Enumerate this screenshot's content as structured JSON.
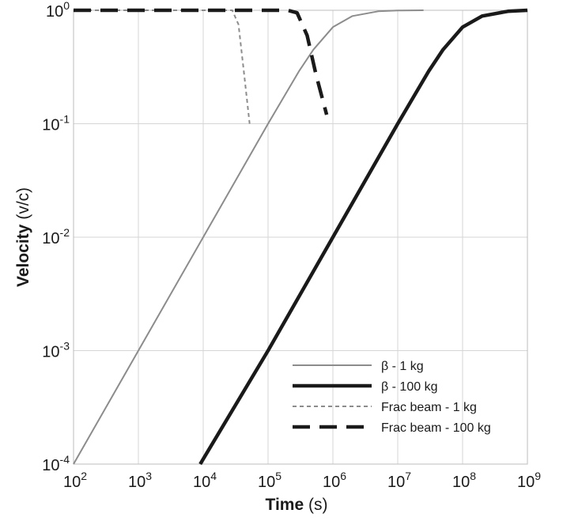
{
  "chart_data": {
    "type": "line",
    "xlabel_bold": "Time",
    "xlabel_unit": "(s)",
    "ylabel_bold": "Velocity",
    "ylabel_unit": "(v/c)",
    "x_scale": "log",
    "y_scale": "log",
    "xlim": [
      100,
      1000000000
    ],
    "ylim": [
      0.0001,
      1
    ],
    "grid": true,
    "legend_position": "bottom-right",
    "x_ticks": [
      {
        "base": "10",
        "exp": "2",
        "value": 100
      },
      {
        "base": "10",
        "exp": "3",
        "value": 1000
      },
      {
        "base": "10",
        "exp": "4",
        "value": 10000
      },
      {
        "base": "10",
        "exp": "5",
        "value": 100000
      },
      {
        "base": "10",
        "exp": "6",
        "value": 1000000
      },
      {
        "base": "10",
        "exp": "7",
        "value": 10000000
      },
      {
        "base": "10",
        "exp": "8",
        "value": 100000000
      },
      {
        "base": "10",
        "exp": "9",
        "value": 1000000000
      }
    ],
    "y_ticks": [
      {
        "base": "10",
        "exp": "0",
        "value": 1
      },
      {
        "base": "10",
        "exp": "-1",
        "value": 0.1
      },
      {
        "base": "10",
        "exp": "-2",
        "value": 0.01
      },
      {
        "base": "10",
        "exp": "-3",
        "value": 0.001
      },
      {
        "base": "10",
        "exp": "-4",
        "value": 0.0001
      }
    ],
    "series": [
      {
        "name": "β - 1 kg",
        "color": "#8c8c8c",
        "style": "solid-thin",
        "x": [
          100,
          1000,
          10000,
          100000,
          300000,
          500000,
          1000000,
          2000000,
          5000000,
          10000000,
          25000000
        ],
        "y": [
          0.0001,
          0.001,
          0.01,
          0.1,
          0.29,
          0.45,
          0.71,
          0.89,
          0.98,
          0.995,
          1.0
        ]
      },
      {
        "name": "β - 100 kg",
        "color": "#1a1a1a",
        "style": "solid-thick",
        "x": [
          9000,
          100000,
          1000000,
          10000000,
          30000000,
          50000000,
          100000000,
          200000000,
          500000000,
          1000000000
        ],
        "y": [
          0.0001,
          0.001,
          0.01,
          0.1,
          0.29,
          0.45,
          0.71,
          0.89,
          0.98,
          1.0
        ]
      },
      {
        "name": "Frac beam - 1 kg",
        "color": "#8c8c8c",
        "style": "dashed-thin",
        "x": [
          100,
          28000,
          35000,
          42000,
          52000
        ],
        "y": [
          1.0,
          1.0,
          0.75,
          0.3,
          0.1
        ]
      },
      {
        "name": "Frac beam - 100 kg",
        "color": "#1a1a1a",
        "style": "dashed-thick",
        "x": [
          100,
          200000,
          280000,
          400000,
          550000,
          800000
        ],
        "y": [
          1.0,
          1.0,
          0.95,
          0.6,
          0.27,
          0.12
        ]
      }
    ]
  }
}
